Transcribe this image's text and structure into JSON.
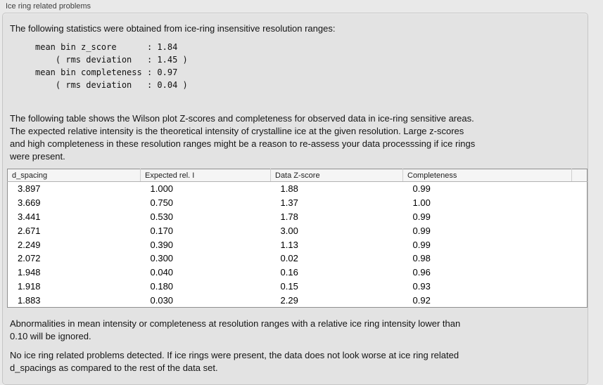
{
  "panel": {
    "title": "Ice ring related problems"
  },
  "sections": {
    "intro": "The following statistics were obtained from ice-ring insensitive resolution ranges:",
    "stats_text": "mean bin z_score      : 1.84\n    ( rms deviation   : 1.45 )\nmean bin completeness : 0.97\n    ( rms deviation   : 0.04 )",
    "table_description": "The following table shows the Wilson plot Z-scores and completeness for observed data in ice-ring sensitive areas.\nThe expected relative intensity is the theoretical intensity of crystalline ice at the given resolution. Large z-scores\nand high completeness in these resolution ranges might be a reason to re-assess your data processsing if ice rings\nwere present.",
    "note": "Abnormalities in mean intensity or completeness at resolution ranges with a relative ice ring intensity lower than\n0.10 will be ignored.",
    "conclusion": "No ice ring related problems detected. If ice rings were present, the data does not look worse at ice ring related\nd_spacings as compared to the rest of the data set."
  },
  "table": {
    "columns": [
      "d_spacing",
      "Expected rel. I",
      "Data Z-score",
      "Completeness"
    ],
    "rows": [
      [
        "3.897",
        "1.000",
        "1.88",
        "0.99"
      ],
      [
        "3.669",
        "0.750",
        "1.37",
        "1.00"
      ],
      [
        "3.441",
        "0.530",
        "1.78",
        "0.99"
      ],
      [
        "2.671",
        "0.170",
        "3.00",
        "0.99"
      ],
      [
        "2.249",
        "0.390",
        "1.13",
        "0.99"
      ],
      [
        "2.072",
        "0.300",
        "0.02",
        "0.98"
      ],
      [
        "1.948",
        "0.040",
        "0.16",
        "0.96"
      ],
      [
        "1.918",
        "0.180",
        "0.15",
        "0.93"
      ],
      [
        "1.883",
        "0.030",
        "2.29",
        "0.92"
      ]
    ]
  },
  "colors": {
    "window_bg": "#e9e9e9",
    "groupbox_bg": "#e3e3e3",
    "groupbox_border": "#c6c6c6",
    "table_border": "#8f8f8f",
    "table_header_bg": "#f5f5f5",
    "table_body_bg": "#ffffff",
    "text": "#141414"
  }
}
